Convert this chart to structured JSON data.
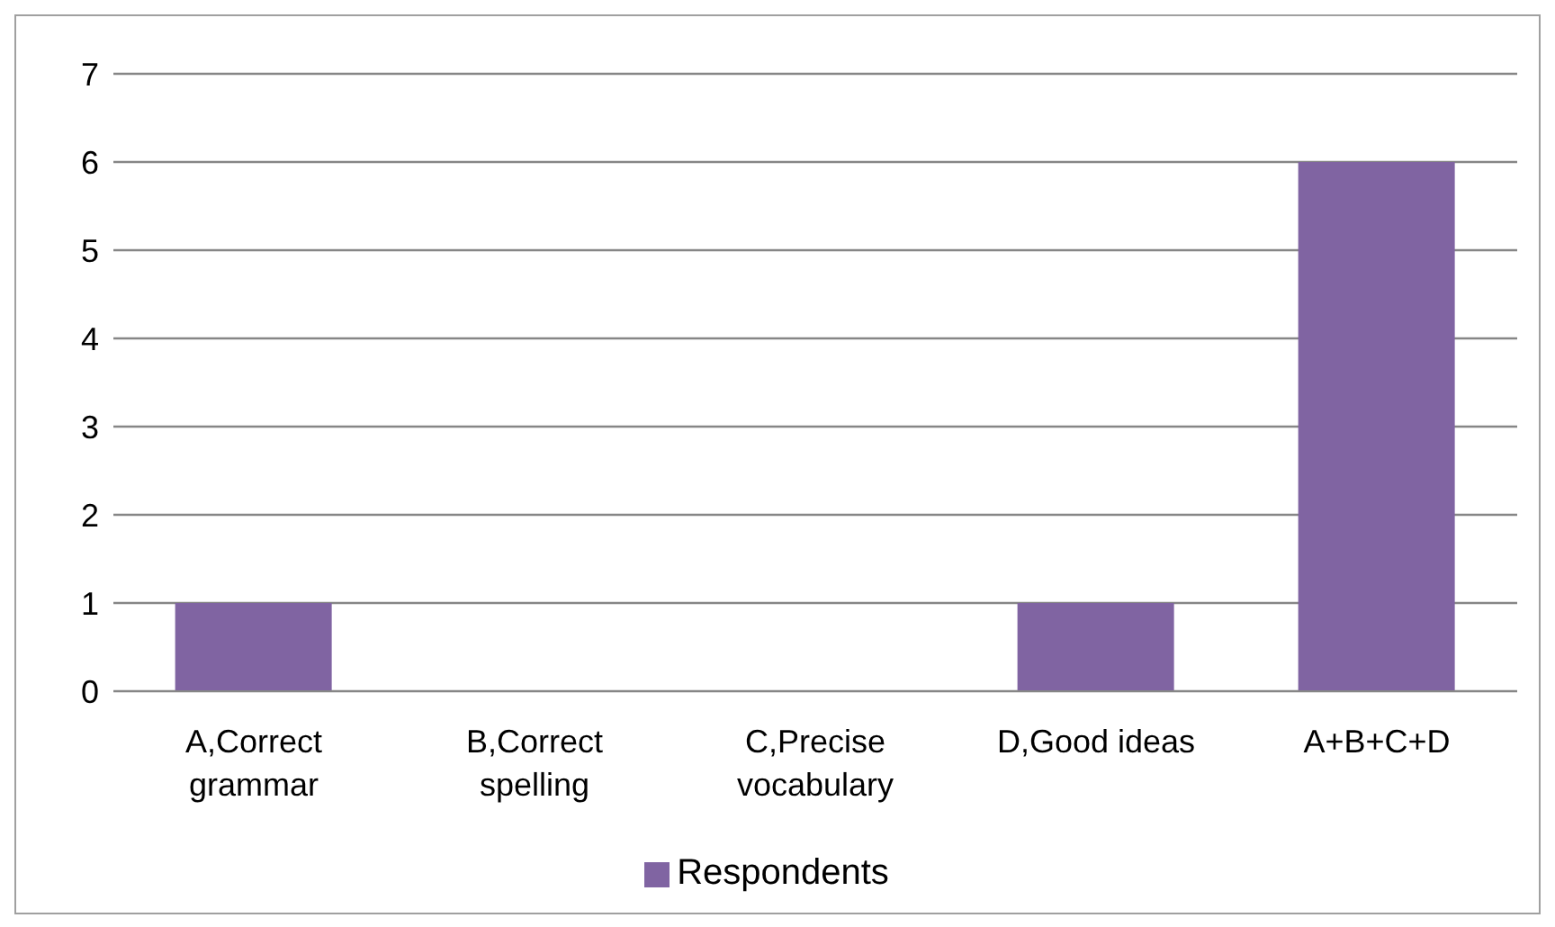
{
  "chart_data": {
    "type": "bar",
    "categories": [
      "A,Correct grammar",
      "B,Correct spelling",
      "C,Precise vocabulary",
      "D,Good ideas",
      "A+B+C+D"
    ],
    "series": [
      {
        "name": "Respondents",
        "color": "#8064a2",
        "values": [
          1,
          0,
          0,
          1,
          6
        ]
      }
    ],
    "ylim": [
      0,
      7
    ],
    "yticks": [
      0,
      1,
      2,
      3,
      4,
      5,
      6,
      7
    ],
    "grid": "y",
    "legend": "bottom"
  }
}
